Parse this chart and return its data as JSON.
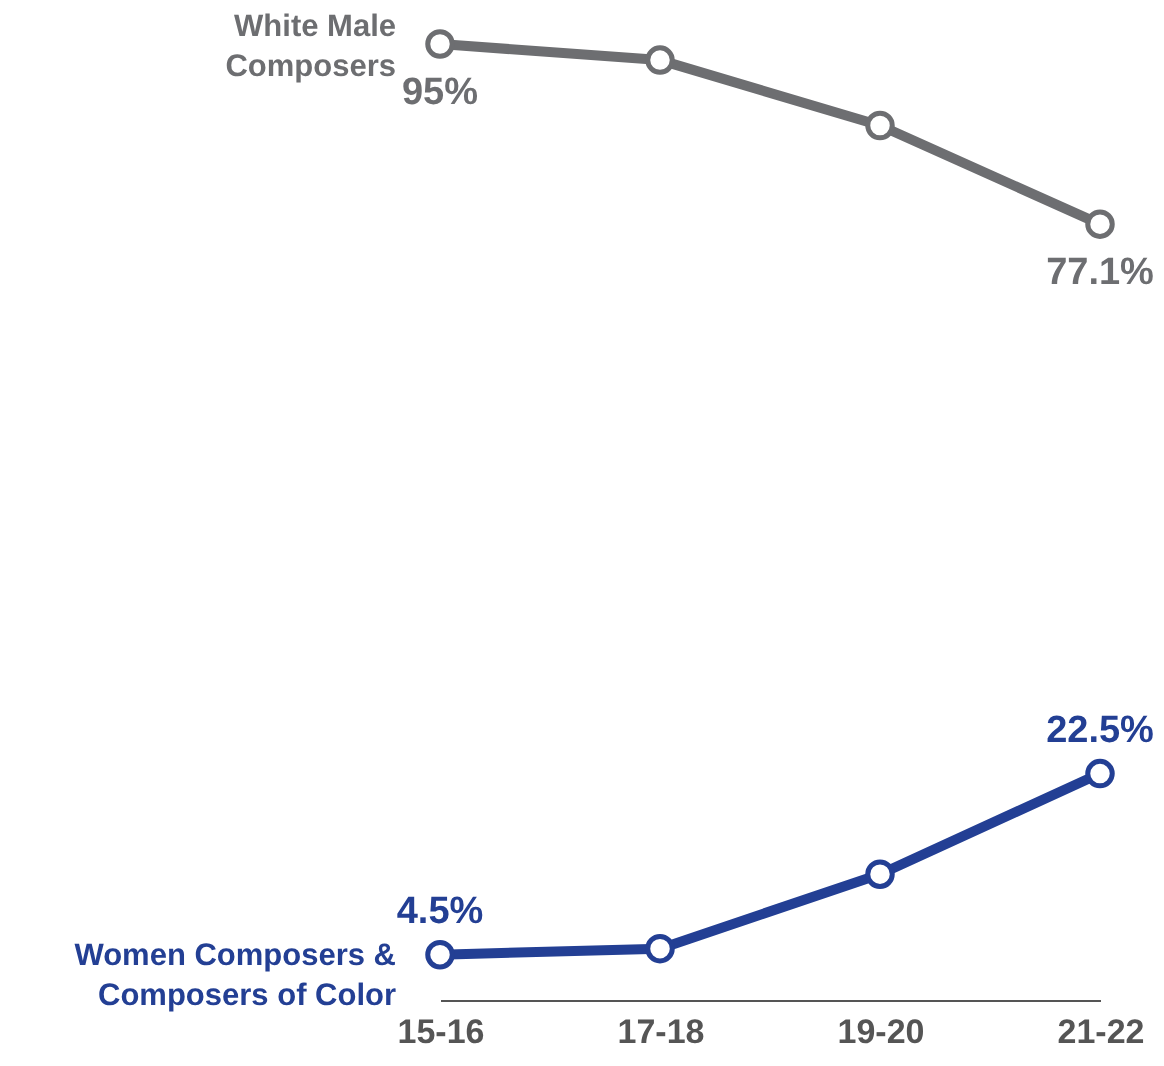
{
  "chart_data": {
    "type": "line",
    "categories": [
      "15-16",
      "17-18",
      "19-20",
      "21-22"
    ],
    "marker": "circle",
    "tick_labels": "x",
    "series": [
      {
        "name": "White Male\nComposers",
        "color": "#6d6e71",
        "values": [
          95,
          93.4,
          86.9,
          77.1
        ],
        "value_labels": [
          "95%",
          null,
          null,
          "77.1%"
        ]
      },
      {
        "name": "Women Composers &\nComposers of Color",
        "color": "#233f94",
        "values": [
          4.5,
          5.1,
          12.5,
          22.5
        ],
        "value_labels": [
          "4.5%",
          null,
          null,
          "22.5%"
        ]
      }
    ]
  }
}
